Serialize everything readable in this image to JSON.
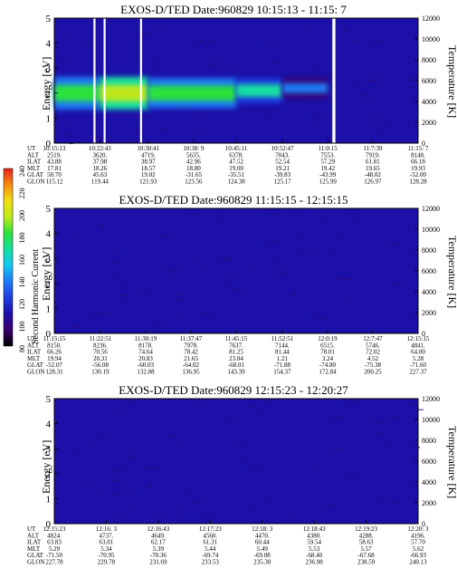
{
  "colorbar": {
    "label": "Second Harmonic Current",
    "ticks": [
      "240",
      "220",
      "200",
      "180",
      "160",
      "140",
      "120",
      "100",
      "80"
    ],
    "colors": [
      "#000000",
      "#3b006e",
      "#1c10a8",
      "#1f3be0",
      "#1a7cf5",
      "#12c8f0",
      "#16e0a0",
      "#2ce23a",
      "#bfe81a",
      "#f2e012",
      "#f78a10",
      "#e8221a"
    ]
  },
  "panels": [
    {
      "title": "EXOS-D/TED   Date:960829  10:15:13 - 11:15: 7",
      "ylabel": "Energy [eV]",
      "y2label": "Temperature [K]",
      "yticks": [
        "0",
        "1",
        "2",
        "3",
        "4",
        "5"
      ],
      "y2ticks": [
        "0",
        "2000",
        "4000",
        "6000",
        "8000",
        "10000",
        "12000"
      ],
      "table": {
        "row_labels": [
          "UT",
          "ALT",
          "ILAT",
          "MLT",
          "GLAT",
          "GLON"
        ],
        "columns": [
          [
            "10:15:13",
            "2519.",
            "43.88",
            "17.81",
            "50.70",
            "115.12"
          ],
          [
            "10:22:43",
            "3620.",
            "37.98",
            "18.26",
            "45.63",
            "119.44"
          ],
          [
            "10:30:41",
            "4719.",
            "38.97",
            "18.57",
            "19.02",
            "121.93"
          ],
          [
            "10:38: 9",
            "5635.",
            "42.96",
            "18.80",
            "-31.65",
            "123.56"
          ],
          [
            "10:45:11",
            "6378.",
            "47.52",
            "19.00",
            "-35.51",
            "124.38"
          ],
          [
            "10:52:47",
            "7043.",
            "52.54",
            "19.21",
            "-39.83",
            "125.17"
          ],
          [
            "11:0:15",
            "7553.",
            "57.29",
            "19.42",
            "-43.99",
            "125.99"
          ],
          [
            "11:7:39",
            "7919.",
            "61.81",
            "19.65",
            "-48.02",
            "126.97"
          ],
          [
            "11:15: 7",
            "8148.",
            "66.18",
            "19.93",
            "-52.00",
            "128.28"
          ]
        ]
      }
    },
    {
      "title": "EXOS-D/TED   Date:960829  11:15:15 - 12:15:15",
      "ylabel": "Energy [eV]",
      "y2label": "Temperature [K]",
      "yticks": [
        "0",
        "1",
        "2",
        "3",
        "4",
        "5"
      ],
      "y2ticks": [
        "0",
        "2000",
        "4000",
        "6000",
        "8000",
        "10000",
        "12000"
      ],
      "table": {
        "row_labels": [
          "UT",
          "ALT",
          "ILAT",
          "MLT",
          "GLAT",
          "GLON"
        ],
        "columns": [
          [
            "11:15:15",
            "8150.",
            "66.26",
            "19.94",
            "-52.07",
            "128.31"
          ],
          [
            "11:22:51",
            "8236.",
            "70.56",
            "20.31",
            "-56.08",
            "130.19"
          ],
          [
            "11:30:19",
            "8178.",
            "74.64",
            "20.83",
            "-60.03",
            "132.88"
          ],
          [
            "11:37:47",
            "7978.",
            "78.42",
            "21.65",
            "-64.02",
            "136.95"
          ],
          [
            "11:45:15",
            "7637.",
            "81.25",
            "23.04",
            "-68.01",
            "143.39"
          ],
          [
            "11:52:51",
            "7144.",
            "81.44",
            "1.21",
            "-71.88",
            "154.37"
          ],
          [
            "12:0:19",
            "6515.",
            "78.01",
            "3.24",
            "-74.80",
            "172.84"
          ],
          [
            "12:7:47",
            "5746.",
            "72.02",
            "4.52",
            "-75.38",
            "200.25"
          ],
          [
            "12:15:15",
            "4841.",
            "64.00",
            "5.28",
            "-71.60",
            "227.37"
          ]
        ]
      }
    },
    {
      "title": "EXOS-D/TED   Date:960829  12:15:23 - 12:20:27",
      "ylabel": "Energy [eV]",
      "y2label": "Temperature [K]",
      "yticks": [
        "0",
        "1",
        "2",
        "3",
        "4",
        "5"
      ],
      "y2ticks": [
        "0",
        "2000",
        "4000",
        "6000",
        "8000",
        "10000",
        "12000"
      ],
      "table": {
        "row_labels": [
          "UT",
          "ALT",
          "ILAT",
          "MLT",
          "GLAT",
          "GLON"
        ],
        "columns": [
          [
            "12:15:23",
            "4824.",
            "63.83",
            "5.29",
            "-71.50",
            "227.78"
          ],
          [
            "12:16: 3",
            "4737.",
            "63.01",
            "5.34",
            "-70.95",
            "229.78"
          ],
          [
            "12:16:43",
            "4649.",
            "62.17",
            "5.39",
            "-70.36",
            "231.69"
          ],
          [
            "12:17:23",
            "4560.",
            "61.31",
            "5.44",
            "-69.74",
            "233.53"
          ],
          [
            "12:18: 3",
            "4470.",
            "60.44",
            "5.49",
            "-69.08",
            "235.30"
          ],
          [
            "12:18:43",
            "4380.",
            "59.54",
            "5.53",
            "-68.40",
            "236.98"
          ],
          [
            "12:19:23",
            "4288.",
            "58.63",
            "5.57",
            "-67.68",
            "238.59"
          ],
          [
            "12:20: 3",
            "4196.",
            "57.70",
            "5.62",
            "-66.93",
            "240.13"
          ]
        ]
      }
    }
  ],
  "chart_data": [
    {
      "type": "heatmap",
      "title": "EXOS-D/TED   Date:960829  10:15:13 - 11:15: 7",
      "xlabel": "UT",
      "ylabel": "Energy [eV]",
      "y2label": "Temperature [K]",
      "ylim": [
        0,
        5
      ],
      "y2lim": [
        0,
        12000
      ],
      "x_ticks": [
        "10:15:13",
        "10:22:43",
        "10:30:41",
        "10:38: 9",
        "10:45:11",
        "10:52:47",
        "11:0:15",
        "11:7:39",
        "11:15: 7"
      ],
      "band_segments": [
        {
          "x_from": "10:15:13",
          "x_to": "10:22:43",
          "center_ev": 2.0,
          "width_ev": 1.3,
          "level": 180
        },
        {
          "x_from": "10:22:43",
          "x_to": "10:30:41",
          "center_ev": 2.0,
          "width_ev": 1.3,
          "level": 200
        },
        {
          "x_from": "10:30:41",
          "x_to": "10:45:11",
          "center_ev": 2.0,
          "width_ev": 1.2,
          "level": 175
        },
        {
          "x_from": "10:45:11",
          "x_to": "10:52:47",
          "center_ev": 2.1,
          "width_ev": 1.0,
          "level": 160
        },
        {
          "x_from": "10:52:47",
          "x_to": "11:0:15",
          "center_ev": 2.2,
          "width_ev": 0.8,
          "level": 140
        }
      ],
      "data_gaps": [
        {
          "x_from": "10:21:40",
          "x_to": "10:22:00"
        },
        {
          "x_from": "10:23:20",
          "x_to": "10:23:40"
        },
        {
          "x_from": "10:29:20",
          "x_to": "10:29:40"
        },
        {
          "x_from": "11:1:00",
          "x_to": "11:1:30"
        }
      ],
      "background_level": 115
    },
    {
      "type": "heatmap",
      "title": "EXOS-D/TED   Date:960829  11:15:15 - 12:15:15",
      "xlabel": "UT",
      "ylabel": "Energy [eV]",
      "y2label": "Temperature [K]",
      "ylim": [
        0,
        5
      ],
      "y2lim": [
        0,
        12000
      ],
      "x_ticks": [
        "11:15:15",
        "11:22:51",
        "11:30:19",
        "11:37:47",
        "11:45:15",
        "11:52:51",
        "12:0:19",
        "12:7:47",
        "12:15:15"
      ],
      "background_level": 112
    },
    {
      "type": "heatmap",
      "title": "EXOS-D/TED   Date:960829  12:15:23 - 12:20:27",
      "xlabel": "UT",
      "ylabel": "Energy [eV]",
      "y2label": "Temperature [K]",
      "ylim": [
        0,
        5
      ],
      "y2lim": [
        0,
        12000
      ],
      "x_ticks": [
        "12:15:23",
        "12:16: 3",
        "12:16:43",
        "12:17:23",
        "12:18: 3",
        "12:18:43",
        "12:19:23",
        "12:20: 3"
      ],
      "background_level": 112
    }
  ]
}
